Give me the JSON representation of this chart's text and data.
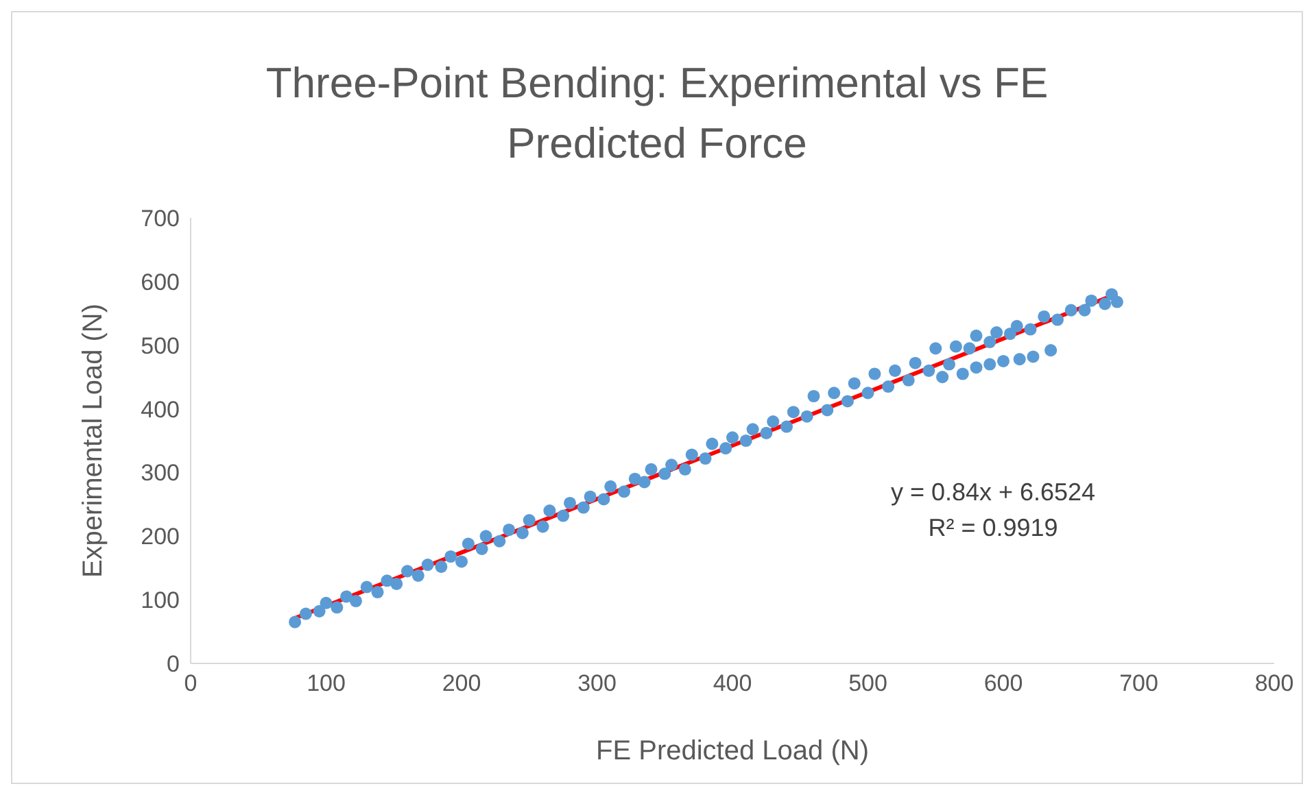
{
  "chart_data": {
    "type": "scatter",
    "title": "Three-Point Bending: Experimental vs FE Predicted Force",
    "xlabel": "FE Predicted Load (N)",
    "ylabel": "Experimental Load (N)",
    "xlim": [
      0,
      800
    ],
    "xticks": [
      0,
      100,
      200,
      300,
      400,
      500,
      600,
      700,
      800
    ],
    "ylim": [
      0,
      700
    ],
    "yticks": [
      0,
      100,
      200,
      300,
      400,
      500,
      600,
      700
    ],
    "grid": false,
    "annotations": [
      "y = 0.84x + 6.6524",
      "R² = 0.9919"
    ],
    "series": [
      {
        "marker": "circle",
        "color": "#5b9bd5",
        "x": [
          77,
          85,
          95,
          100,
          108,
          115,
          122,
          130,
          138,
          145,
          152,
          160,
          168,
          175,
          185,
          192,
          200,
          205,
          215,
          218,
          228,
          235,
          245,
          250,
          260,
          265,
          275,
          280,
          290,
          295,
          305,
          310,
          320,
          328,
          335,
          340,
          350,
          355,
          365,
          370,
          380,
          385,
          395,
          400,
          410,
          415,
          425,
          430,
          440,
          445,
          455,
          460,
          470,
          475,
          485,
          490,
          500,
          505,
          515,
          520,
          530,
          535,
          545,
          550,
          560,
          565,
          575,
          580,
          590,
          595,
          605,
          610,
          620,
          630,
          640,
          650,
          660,
          665,
          675,
          680,
          684,
          555,
          570,
          580,
          590,
          600,
          612,
          622,
          635
        ],
        "values": [
          65,
          78,
          82,
          95,
          88,
          105,
          98,
          120,
          112,
          130,
          125,
          145,
          138,
          155,
          152,
          168,
          160,
          188,
          180,
          200,
          192,
          210,
          205,
          225,
          215,
          240,
          232,
          252,
          245,
          262,
          258,
          278,
          270,
          290,
          285,
          305,
          298,
          312,
          305,
          328,
          322,
          345,
          338,
          355,
          350,
          368,
          362,
          380,
          372,
          395,
          388,
          420,
          398,
          425,
          412,
          440,
          425,
          455,
          435,
          460,
          445,
          472,
          460,
          495,
          470,
          498,
          495,
          515,
          505,
          520,
          518,
          530,
          525,
          545,
          540,
          555,
          555,
          570,
          565,
          580,
          568,
          450,
          455,
          465,
          470,
          475,
          478,
          482,
          492
        ]
      },
      {
        "type": "line",
        "marker": "none",
        "color": "#ff0000",
        "x": [
          77,
          684
        ],
        "values": [
          71,
          581
        ]
      }
    ]
  }
}
